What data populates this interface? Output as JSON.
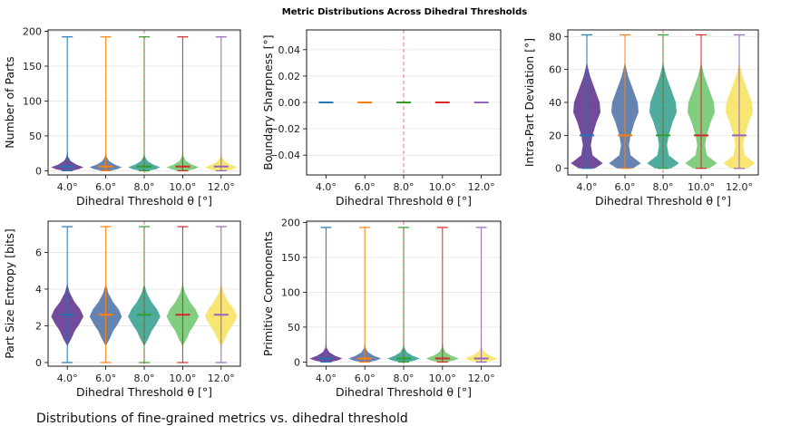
{
  "figure_title": "Metric Distributions Across Dihedral Thresholds",
  "caption": "Distributions of fine-grained metrics vs. dihedral threshold",
  "colors": {
    "series": [
      "#1f77b4",
      "#ff7f0e",
      "#2ca02c",
      "#d62728",
      "#9467bd"
    ],
    "violin_fills": [
      "#5c2a8a",
      "#4a6fa5",
      "#2f9c8c",
      "#6cc56a",
      "#f7e25a"
    ],
    "refline": "#e41a1c",
    "grid": "#e5e5e5"
  },
  "chart_data": [
    {
      "type": "violin",
      "ylabel": "Number of Parts",
      "xlabel": "Dihedral Threshold θ [°]",
      "categories": [
        "4.0°",
        "6.0°",
        "8.0°",
        "10.0°",
        "12.0°"
      ],
      "ylim": [
        -6,
        202
      ],
      "yticks": [
        0,
        50,
        100,
        150,
        200
      ],
      "max": 192,
      "min": 0,
      "medians": [
        6,
        6,
        6,
        6,
        6
      ],
      "grid": true,
      "refline_category": "8.0°",
      "profile": [
        [
          0,
          0.25
        ],
        [
          2,
          0.7
        ],
        [
          5,
          1.0
        ],
        [
          9,
          0.55
        ],
        [
          14,
          0.2
        ],
        [
          20,
          0.05
        ],
        [
          30,
          0
        ]
      ]
    },
    {
      "type": "violin",
      "ylabel": "Boundary Sharpness [°]",
      "xlabel": "Dihedral Threshold θ [°]",
      "categories": [
        "4.0°",
        "6.0°",
        "8.0°",
        "10.0°",
        "12.0°"
      ],
      "ylim": [
        -0.055,
        0.055
      ],
      "yticks": [
        -0.04,
        -0.02,
        0.0,
        0.02,
        0.04
      ],
      "ytick_labels": [
        "−0.04",
        "−0.02",
        "0.00",
        "0.02",
        "0.04"
      ],
      "max": 0,
      "min": 0,
      "medians": [
        0,
        0,
        0,
        0,
        0
      ],
      "grid": true,
      "refline_category": "8.0°",
      "profile": []
    },
    {
      "type": "violin",
      "ylabel": "Intra-Part Deviation [°]",
      "xlabel": "Dihedral Threshold θ [°]",
      "categories": [
        "4.0°",
        "6.0°",
        "8.0°",
        "10.0°",
        "12.0°"
      ],
      "ylim": [
        -4,
        84
      ],
      "yticks": [
        0,
        20,
        40,
        60,
        80
      ],
      "max": 81,
      "min": 0,
      "medians": [
        20,
        20,
        20,
        20,
        20
      ],
      "grid": true,
      "refline_category": "8.0°",
      "profile": [
        [
          0,
          0.5
        ],
        [
          3,
          1.0
        ],
        [
          8,
          0.35
        ],
        [
          14,
          0.25
        ],
        [
          20,
          0.35
        ],
        [
          28,
          0.6
        ],
        [
          34,
          0.85
        ],
        [
          40,
          0.8
        ],
        [
          48,
          0.5
        ],
        [
          56,
          0.2
        ],
        [
          62,
          0.05
        ],
        [
          66,
          0
        ]
      ]
    },
    {
      "type": "violin",
      "ylabel": "Part Size Entropy [bits]",
      "xlabel": "Dihedral Threshold θ [°]",
      "categories": [
        "4.0°",
        "6.0°",
        "8.0°",
        "10.0°",
        "12.0°"
      ],
      "ylim": [
        -0.2,
        7.7
      ],
      "yticks": [
        0,
        2,
        4,
        6
      ],
      "max": 7.4,
      "min": 0,
      "medians": [
        2.6,
        2.6,
        2.6,
        2.6,
        2.6
      ],
      "grid": true,
      "refline_category": "8.0°",
      "profile": [
        [
          0.9,
          0
        ],
        [
          1.3,
          0.25
        ],
        [
          1.7,
          0.45
        ],
        [
          2.1,
          0.75
        ],
        [
          2.5,
          1.0
        ],
        [
          2.9,
          0.8
        ],
        [
          3.3,
          0.45
        ],
        [
          3.8,
          0.15
        ],
        [
          4.2,
          0.03
        ],
        [
          4.4,
          0
        ]
      ]
    },
    {
      "type": "violin",
      "ylabel": "Primitive Components",
      "xlabel": "Dihedral Threshold θ [°]",
      "categories": [
        "4.0°",
        "6.0°",
        "8.0°",
        "10.0°",
        "12.0°"
      ],
      "ylim": [
        -6,
        202
      ],
      "yticks": [
        0,
        50,
        100,
        150,
        200
      ],
      "max": 193,
      "min": 0,
      "medians": [
        5,
        5,
        5,
        5,
        5
      ],
      "grid": true,
      "refline_category": "8.0°",
      "profile": [
        [
          0,
          0.25
        ],
        [
          2,
          0.7
        ],
        [
          5,
          1.0
        ],
        [
          9,
          0.55
        ],
        [
          14,
          0.2
        ],
        [
          20,
          0.05
        ],
        [
          30,
          0
        ]
      ]
    }
  ]
}
